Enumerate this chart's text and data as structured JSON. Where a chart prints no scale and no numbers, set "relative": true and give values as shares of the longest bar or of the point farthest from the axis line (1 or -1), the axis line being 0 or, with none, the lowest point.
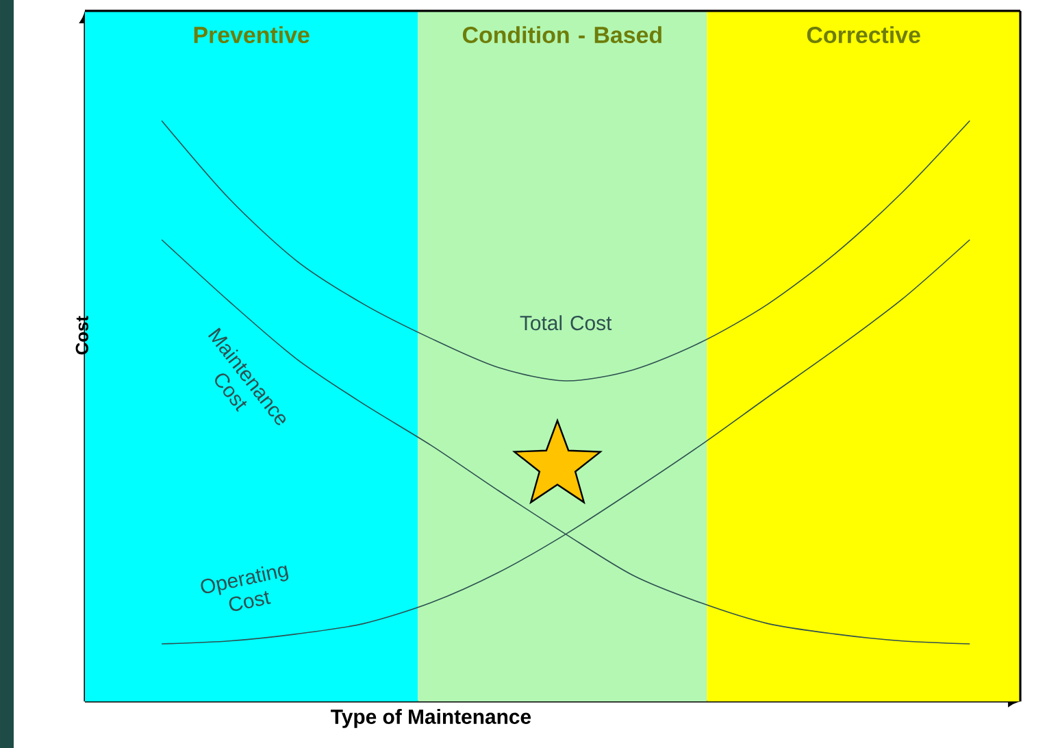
{
  "chart_data": {
    "type": "line",
    "relative": true,
    "xlabel": "Type of Maintenance",
    "ylabel": "Cost",
    "marker": "none",
    "line_style": "solid",
    "categories": [
      null,
      null,
      null,
      null,
      null,
      null,
      null,
      null,
      null,
      null,
      null,
      null,
      null
    ],
    "series": [
      {
        "name": "Total Cost",
        "color": "#2f5050",
        "values": [
          1.0,
          0.866,
          0.759,
          0.684,
          0.625,
          0.575,
          0.552,
          0.571,
          0.618,
          0.684,
          0.771,
          0.877,
          1.0
        ]
      },
      {
        "name": "Maintenance Cost",
        "color": "#2f5050",
        "values": [
          0.795,
          0.689,
          0.59,
          0.512,
          0.441,
          0.363,
          0.288,
          0.217,
          0.17,
          0.134,
          0.116,
          0.104,
          0.099
        ]
      },
      {
        "name": "Operating Cost",
        "color": "#2f5050",
        "values": [
          0.099,
          0.104,
          0.116,
          0.134,
          0.17,
          0.222,
          0.288,
          0.363,
          0.441,
          0.524,
          0.606,
          0.693,
          0.795
        ]
      }
    ],
    "annotations": [
      "Preventive",
      "Condition - Based",
      "Corrective"
    ]
  }
}
